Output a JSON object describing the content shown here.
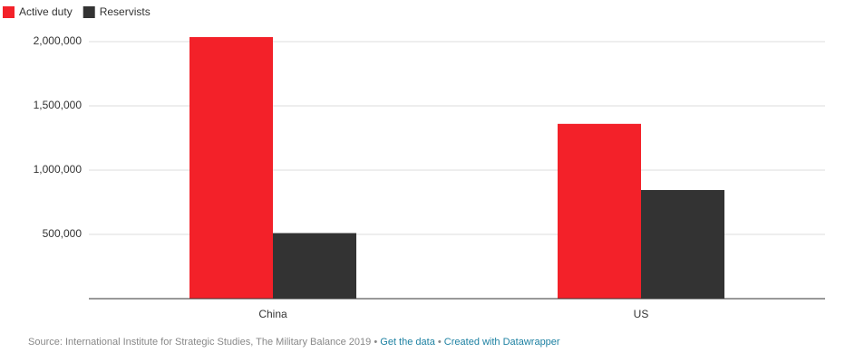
{
  "chart_data": {
    "type": "bar",
    "categories": [
      "China",
      "US"
    ],
    "series": [
      {
        "name": "Active duty",
        "color": "#f32129",
        "values": [
          2035000,
          1360000
        ]
      },
      {
        "name": "Reservists",
        "color": "#333333",
        "values": [
          510000,
          845000
        ]
      }
    ],
    "ylim": [
      0,
      2070000
    ],
    "yticks": [
      {
        "value": 500000,
        "label": "500,000"
      },
      {
        "value": 1000000,
        "label": "1,000,000"
      },
      {
        "value": 1500000,
        "label": "1,500,000"
      },
      {
        "value": 2000000,
        "label": "2,000,000"
      }
    ],
    "grid": true,
    "legend": "top-left"
  },
  "footer": {
    "source": "Source: International Institute for Strategic Studies, The Military Balance 2019",
    "separator": "•",
    "data_link": "Get the data",
    "credit_link": "Created with Datawrapper"
  }
}
